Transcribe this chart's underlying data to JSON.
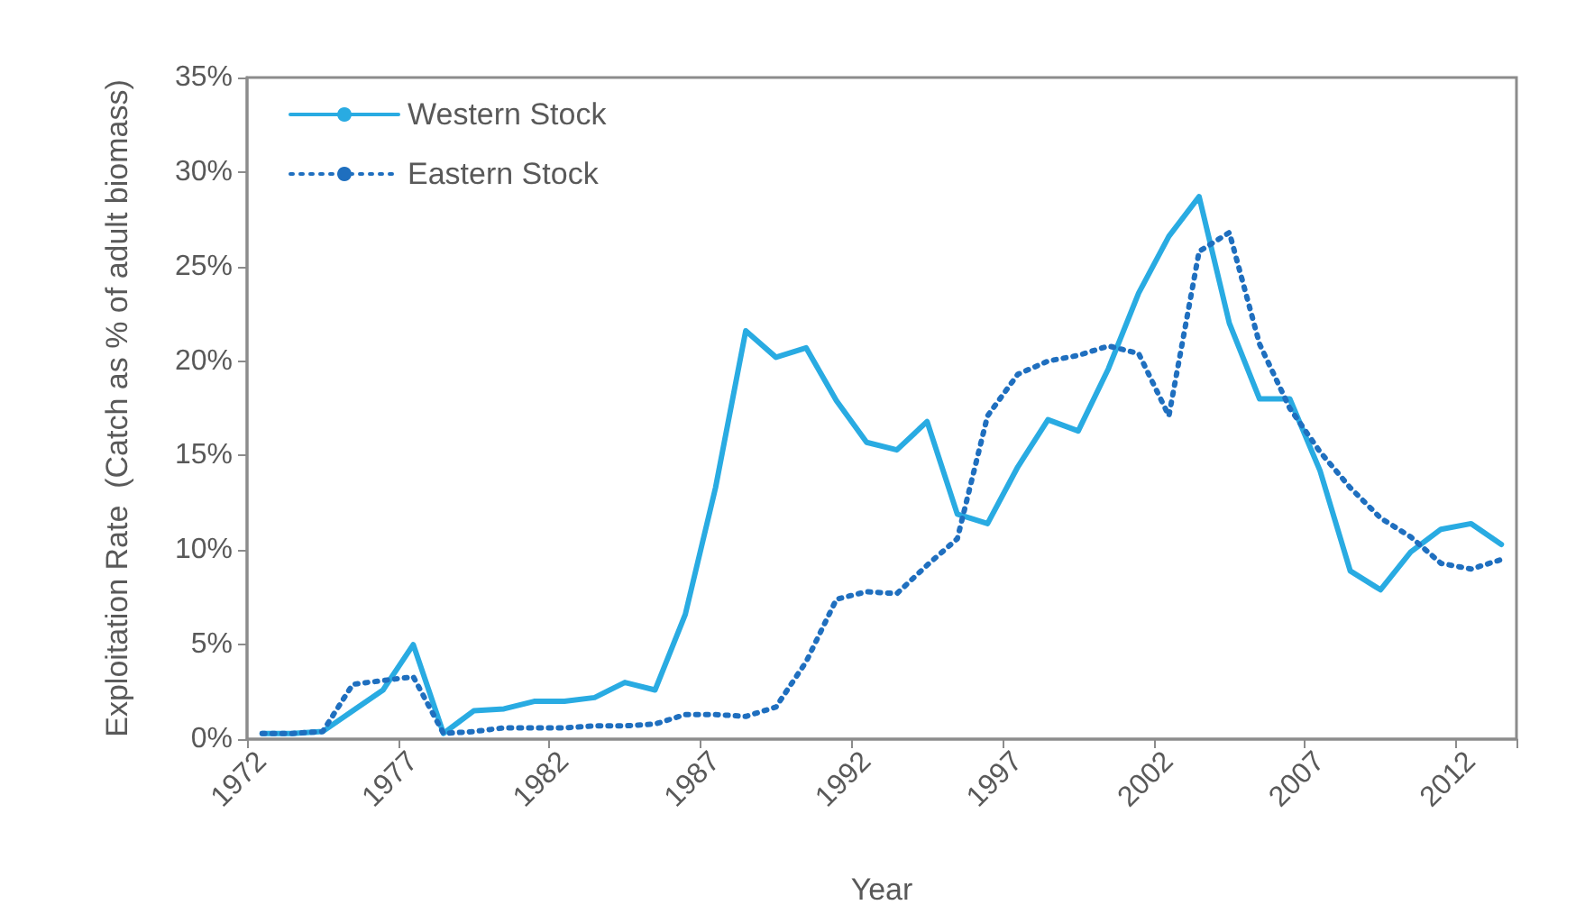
{
  "chart_data": {
    "type": "line",
    "xlabel": "Year",
    "ylabel": "Exploitation Rate  (Catch as % of adult biomass)",
    "categories": [
      "1972",
      null,
      null,
      null,
      null,
      "1977",
      null,
      null,
      null,
      null,
      "1982",
      null,
      null,
      null,
      null,
      "1987",
      null,
      null,
      null,
      null,
      "1992",
      null,
      null,
      null,
      null,
      "1997",
      null,
      null,
      null,
      null,
      "2002",
      null,
      null,
      null,
      null,
      "2007",
      null,
      null,
      null,
      null,
      "2012",
      null
    ],
    "series": [
      {
        "name": "Western Stock",
        "color": "#29abe2",
        "line_style": "solid",
        "values": [
          0.3,
          0.3,
          0.4,
          1.5,
          2.6,
          5.0,
          0.3,
          1.5,
          1.6,
          2.0,
          2.0,
          2.2,
          3.0,
          2.6,
          6.6,
          13.3,
          21.6,
          20.2,
          20.7,
          17.9,
          15.7,
          15.3,
          16.8,
          11.9,
          11.4,
          14.4,
          16.9,
          16.3,
          19.6,
          23.6,
          26.6,
          28.7,
          22.0,
          18.0,
          18.0,
          14.2,
          8.9,
          7.9,
          9.9,
          11.1,
          11.4,
          10.3
        ]
      },
      {
        "name": "Eastern Stock",
        "color": "#1f6fbf",
        "line_style": "dotted",
        "values": [
          0.3,
          0.3,
          0.4,
          2.9,
          3.1,
          3.3,
          0.3,
          0.4,
          0.6,
          0.6,
          0.6,
          0.7,
          0.7,
          0.8,
          1.3,
          1.3,
          1.2,
          1.7,
          4.1,
          7.4,
          7.8,
          7.7,
          9.2,
          10.6,
          17.1,
          19.3,
          20.0,
          20.3,
          20.8,
          20.4,
          17.1,
          25.8,
          26.8,
          20.9,
          17.5,
          15.2,
          13.3,
          11.7,
          10.7,
          9.3,
          9.0,
          9.5
        ]
      }
    ],
    "ylim": [
      0,
      35
    ],
    "yticks": [
      {
        "value": 0,
        "label": "0%"
      },
      {
        "value": 5,
        "label": "5%"
      },
      {
        "value": 10,
        "label": "10%"
      },
      {
        "value": 15,
        "label": "15%"
      },
      {
        "value": 20,
        "label": "20%"
      },
      {
        "value": 25,
        "label": "25%"
      },
      {
        "value": 30,
        "label": "30%"
      },
      {
        "value": 35,
        "label": "35%"
      }
    ],
    "grid": false,
    "legend": "top left",
    "marker": "none"
  }
}
